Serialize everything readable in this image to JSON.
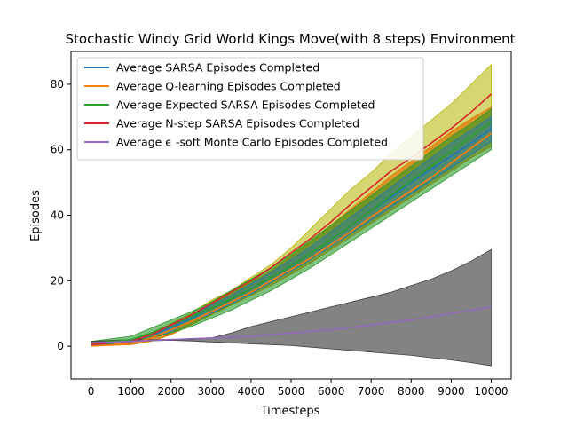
{
  "chart_data": {
    "type": "line",
    "title": "Stochastic Windy Grid World Kings Move(with 8 steps) Environment",
    "xlabel": "Timesteps",
    "ylabel": "Episodes",
    "xlim": [
      -500,
      10500
    ],
    "ylim": [
      -10,
      90
    ],
    "xticks": [
      0,
      1000,
      2000,
      3000,
      4000,
      5000,
      6000,
      7000,
      8000,
      9000,
      10000
    ],
    "yticks": [
      0,
      20,
      40,
      60,
      80
    ],
    "legend_position": "upper-left",
    "grid": false,
    "bands": [
      {
        "color": "#b5b500",
        "opacity": 0.55,
        "x": [
          0,
          1000,
          1500,
          2000,
          2500,
          3000,
          3500,
          4000,
          4500,
          5000,
          5500,
          6000,
          6500,
          7000,
          7500,
          8000,
          8500,
          9000,
          9500,
          10000
        ],
        "upper": [
          1,
          2,
          4,
          7,
          10,
          14,
          17,
          21,
          25,
          30,
          36,
          42,
          48,
          53,
          59,
          64,
          69,
          74,
          80,
          86
        ],
        "lower": [
          0,
          0.5,
          1.5,
          3.5,
          6.5,
          9.5,
          13,
          16,
          19.5,
          23,
          27,
          32,
          36.5,
          41,
          45.5,
          50,
          54.5,
          59,
          63,
          68
        ]
      },
      {
        "color": "#e07800",
        "opacity": 0.7,
        "x": [
          0,
          1000,
          1500,
          2000,
          2500,
          3000,
          3500,
          4000,
          4500,
          5000,
          5500,
          6000,
          6500,
          7000,
          7500,
          8000,
          8500,
          9000,
          9500,
          10000
        ],
        "upper": [
          1,
          1.8,
          3.5,
          6.5,
          9.5,
          13,
          16,
          19.5,
          23,
          27.5,
          32,
          37,
          42,
          47,
          52,
          56.5,
          61,
          65.5,
          69.5,
          73
        ],
        "lower": [
          0,
          0.5,
          1.5,
          3.5,
          6.5,
          9.5,
          12.5,
          15.5,
          18.5,
          22,
          25.5,
          29.5,
          33.5,
          37.5,
          41.5,
          45.5,
          49.5,
          53.5,
          57.5,
          61
        ]
      },
      {
        "color": "#2a9a2a",
        "opacity": 0.6,
        "x": [
          0,
          1000,
          1500,
          2000,
          2500,
          3000,
          3500,
          4000,
          4500,
          5000,
          5500,
          6000,
          6500,
          7000,
          7500,
          8000,
          8500,
          9000,
          9500,
          10000
        ],
        "upper": [
          1.5,
          3,
          5.5,
          8,
          10.5,
          13.5,
          17,
          20.5,
          24,
          28,
          32.5,
          37,
          41.5,
          46,
          50.5,
          55,
          59.5,
          64,
          68,
          72.5
        ],
        "lower": [
          0,
          1.5,
          2.5,
          4,
          6,
          8.5,
          11,
          14,
          17,
          20.5,
          24,
          28,
          32,
          36,
          40,
          44,
          48,
          52,
          56,
          60
        ]
      },
      {
        "color": "#1f77b4",
        "opacity": 0.45,
        "x": [
          0,
          1000,
          1500,
          2000,
          2500,
          3000,
          3500,
          4000,
          4500,
          5000,
          5500,
          6000,
          6500,
          7000,
          7500,
          8000,
          8500,
          9000,
          9500,
          10000
        ],
        "upper": [
          1,
          2,
          4,
          6.5,
          9.5,
          12.5,
          15.5,
          19,
          22.5,
          26.5,
          30.5,
          35,
          39.5,
          44,
          48.5,
          53,
          57.5,
          62,
          66,
          70
        ],
        "lower": [
          0,
          1,
          2.5,
          4.5,
          7.5,
          10,
          13,
          16,
          19.5,
          23,
          26.5,
          30.5,
          34.5,
          38.5,
          42.5,
          46.5,
          50.5,
          54.5,
          58.5,
          62.5
        ]
      },
      {
        "color": "#404040",
        "opacity": 0.65,
        "x": [
          0,
          1000,
          2000,
          2500,
          3000,
          3500,
          4000,
          4500,
          5000,
          5500,
          6000,
          6500,
          7000,
          7500,
          8000,
          8500,
          9000,
          9500,
          10000
        ],
        "upper": [
          1.5,
          2,
          2,
          2,
          2.5,
          4,
          6,
          7.5,
          9,
          10.5,
          12,
          13.5,
          15,
          16.5,
          18.5,
          20.5,
          23,
          26,
          29.5
        ],
        "lower": [
          0.8,
          1.5,
          1.8,
          1.6,
          1.3,
          1,
          0.7,
          0.5,
          0.2,
          -0.3,
          -0.8,
          -1.3,
          -1.8,
          -2.3,
          -2.8,
          -3.5,
          -4.2,
          -5,
          -6
        ]
      }
    ],
    "series": [
      {
        "name": "Average SARSA Episodes Completed",
        "color": "#1f77b4",
        "x": [
          0,
          1000,
          1500,
          2000,
          2500,
          3000,
          3500,
          4000,
          4500,
          5000,
          5500,
          6000,
          6500,
          7000,
          7500,
          8000,
          8500,
          9000,
          9500,
          10000
        ],
        "y": [
          0.5,
          1.5,
          3.5,
          5.5,
          8.5,
          11.5,
          14.5,
          17.5,
          21,
          24.5,
          28.5,
          32.5,
          37,
          41.5,
          45.5,
          50,
          54,
          58,
          62,
          66.5
        ]
      },
      {
        "name": "Average Q-learning Episodes Completed",
        "color": "#ff7f0e",
        "x": [
          0,
          1000,
          1500,
          2000,
          2500,
          3000,
          3500,
          4000,
          4500,
          5000,
          5500,
          6000,
          6500,
          7000,
          7500,
          8000,
          8500,
          9000,
          9500,
          10000
        ],
        "y": [
          0,
          0.8,
          2.5,
          5,
          7.5,
          10.5,
          13.5,
          16.5,
          20,
          23.5,
          27,
          31,
          35,
          39.5,
          43.5,
          47.5,
          51.5,
          56,
          60.5,
          65
        ]
      },
      {
        "name": "Average Expected SARSA Episodes Completed",
        "color": "#2ca02c",
        "x": [
          0,
          1000,
          1500,
          2000,
          2500,
          3000,
          3500,
          4000,
          4500,
          5000,
          5500,
          6000,
          6500,
          7000,
          7500,
          8000,
          8500,
          9000,
          9500,
          10000
        ],
        "y": [
          0.8,
          2,
          4,
          6.5,
          9,
          11.5,
          14.5,
          17.5,
          21,
          24.5,
          28.5,
          32.5,
          37,
          41.5,
          46,
          50.5,
          55,
          59.5,
          64,
          68.5
        ]
      },
      {
        "name": "Average N-step SARSA Episodes Completed",
        "color": "#d62728",
        "x": [
          0,
          1000,
          1500,
          2000,
          2500,
          3000,
          3500,
          4000,
          4500,
          5000,
          5500,
          6000,
          6500,
          7000,
          7500,
          8000,
          8500,
          9000,
          9500,
          10000
        ],
        "y": [
          0.5,
          1.5,
          3.5,
          6.5,
          9.5,
          13,
          16.5,
          20,
          24,
          28.5,
          33,
          38,
          43.5,
          48.5,
          53.5,
          57.5,
          62,
          66.5,
          71.5,
          77
        ]
      },
      {
        "name": "Average ϵ -soft Monte Carlo Episodes Completed",
        "color": "#9467bd",
        "x": [
          0,
          1000,
          2000,
          3000,
          4000,
          5000,
          6000,
          7000,
          8000,
          9000,
          10000
        ],
        "y": [
          1,
          1.5,
          2,
          2.5,
          3,
          4,
          5,
          6.5,
          8,
          10,
          12
        ]
      }
    ]
  }
}
